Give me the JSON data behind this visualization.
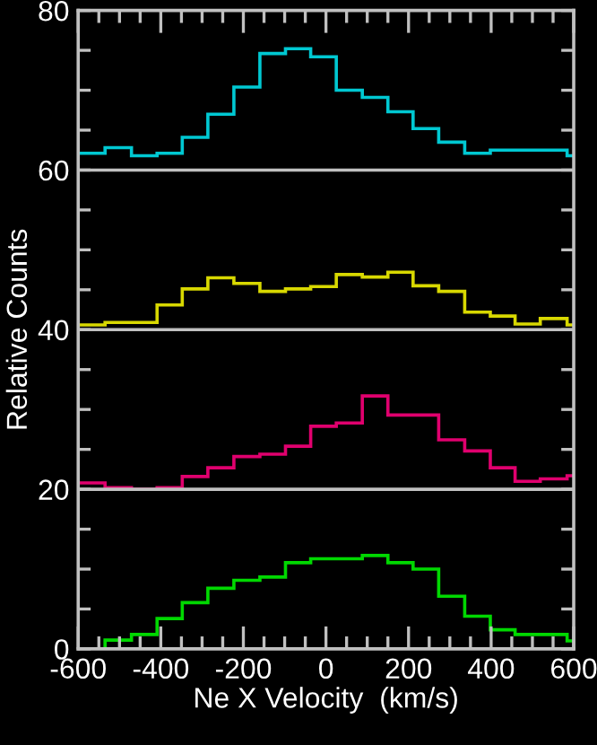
{
  "chart_data": {
    "type": "histogram",
    "xlabel": "Ne X Velocity  (km/s)",
    "ylabel": "Relative Counts",
    "bins": [
      -600,
      -535,
      -471,
      -409,
      -348,
      -286,
      -223,
      -160,
      -98,
      -37,
      25,
      88,
      150,
      211,
      273,
      336,
      398,
      458,
      519,
      584,
      600
    ],
    "series": [
      {
        "color": "#00c8d2",
        "values": [
          62.1,
          62.8,
          61.8,
          62.1,
          64.1,
          67.0,
          70.4,
          74.6,
          75.2,
          74.2,
          70.0,
          69.1,
          67.3,
          65.2,
          63.5,
          62.1,
          62.5,
          62.5,
          62.5,
          61.8
        ]
      },
      {
        "color": "#d8d800",
        "values": [
          40.6,
          40.9,
          40.9,
          43.1,
          45.1,
          46.5,
          45.8,
          44.8,
          45.1,
          45.4,
          46.9,
          46.6,
          47.2,
          45.5,
          44.8,
          42.2,
          41.7,
          40.7,
          41.4,
          40.6
        ]
      },
      {
        "color": "#e0006e",
        "values": [
          20.8,
          20.2,
          20.0,
          20.2,
          21.6,
          22.7,
          24.1,
          24.4,
          25.4,
          27.9,
          28.3,
          31.7,
          29.3,
          29.3,
          26.2,
          24.8,
          22.7,
          21.0,
          21.3,
          21.7
        ]
      },
      {
        "color": "#00d800",
        "values": [
          0,
          1.1,
          1.8,
          3.8,
          5.8,
          7.6,
          8.6,
          9.0,
          10.8,
          11.3,
          11.3,
          11.7,
          10.8,
          10.0,
          6.6,
          4.1,
          2.4,
          1.8,
          1.8,
          1.0
        ]
      }
    ],
    "ref_lines": [
      {
        "axis": "y",
        "value": 20,
        "color": "#c0c0c0"
      },
      {
        "axis": "y",
        "value": 40,
        "color": "#c0c0c0"
      },
      {
        "axis": "y",
        "value": 60,
        "color": "#c0c0c0"
      }
    ],
    "xlim": [
      -600,
      600
    ],
    "ylim": [
      0,
      80
    ],
    "xticks": [
      -600,
      {
        "value": -550,
        "label": null
      },
      {
        "value": -500,
        "label": null
      },
      {
        "value": -450,
        "label": null
      },
      -400,
      {
        "value": -350,
        "label": null
      },
      {
        "value": -300,
        "label": null
      },
      {
        "value": -250,
        "label": null
      },
      -200,
      {
        "value": -150,
        "label": null
      },
      {
        "value": -100,
        "label": null
      },
      {
        "value": -50,
        "label": null
      },
      0,
      {
        "value": 50,
        "label": null
      },
      {
        "value": 100,
        "label": null
      },
      {
        "value": 150,
        "label": null
      },
      200,
      {
        "value": 250,
        "label": null
      },
      {
        "value": 300,
        "label": null
      },
      {
        "value": 350,
        "label": null
      },
      400,
      {
        "value": 450,
        "label": null
      },
      {
        "value": 500,
        "label": null
      },
      {
        "value": 550,
        "label": null
      },
      600
    ],
    "yticks": [
      0,
      {
        "value": 5,
        "label": null
      },
      {
        "value": 10,
        "label": null
      },
      {
        "value": 15,
        "label": null
      },
      20,
      {
        "value": 25,
        "label": null
      },
      {
        "value": 30,
        "label": null
      },
      {
        "value": 35,
        "label": null
      },
      40,
      {
        "value": 45,
        "label": null
      },
      {
        "value": 50,
        "label": null
      },
      {
        "value": 55,
        "label": null
      },
      60,
      {
        "value": 65,
        "label": null
      },
      {
        "value": 70,
        "label": null
      },
      {
        "value": 75,
        "label": null
      },
      80
    ],
    "grid": false,
    "legend": false
  }
}
